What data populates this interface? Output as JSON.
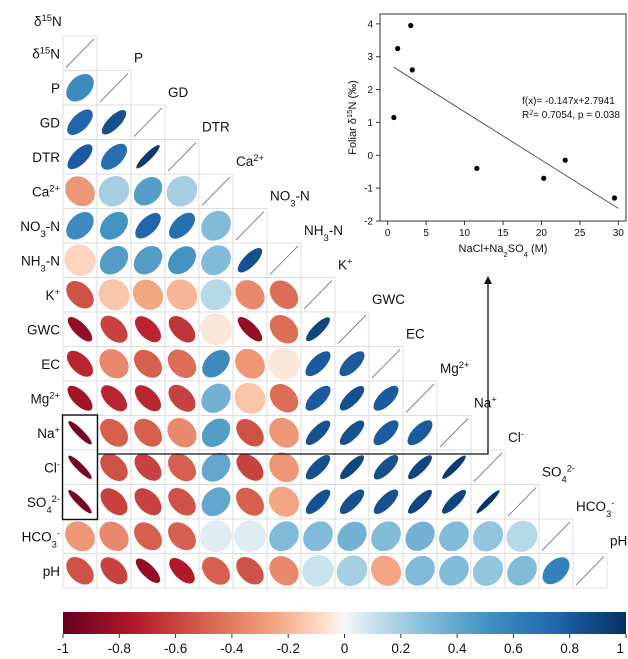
{
  "chart_data": [
    {
      "type": "heatmap",
      "variables": [
        "δ15N",
        "P",
        "GD",
        "DTR",
        "Ca2+",
        "NO3-N",
        "NH3-N",
        "K+",
        "GWC",
        "EC",
        "Mg2+",
        "Na+",
        "Cl-",
        "SO42-",
        "HCO3-",
        "pH"
      ],
      "label_parts": [
        [
          {
            "t": "δ"
          },
          {
            "t": "15",
            "s": "sup"
          },
          {
            "t": "N"
          }
        ],
        [
          {
            "t": "P"
          }
        ],
        [
          {
            "t": "GD"
          }
        ],
        [
          {
            "t": "DTR"
          }
        ],
        [
          {
            "t": "Ca"
          },
          {
            "t": "2+",
            "s": "sup"
          }
        ],
        [
          {
            "t": "NO"
          },
          {
            "t": "3",
            "s": "sub"
          },
          {
            "t": "-N"
          }
        ],
        [
          {
            "t": "NH"
          },
          {
            "t": "3",
            "s": "sub"
          },
          {
            "t": "-N"
          }
        ],
        [
          {
            "t": "K"
          },
          {
            "t": "+",
            "s": "sup"
          }
        ],
        [
          {
            "t": "GWC"
          }
        ],
        [
          {
            "t": "EC"
          }
        ],
        [
          {
            "t": "Mg"
          },
          {
            "t": "2+",
            "s": "sup"
          }
        ],
        [
          {
            "t": "Na"
          },
          {
            "t": "+",
            "s": "sup"
          }
        ],
        [
          {
            "t": "Cl"
          },
          {
            "t": "-",
            "s": "sup"
          }
        ],
        [
          {
            "t": "SO"
          },
          {
            "t": "4",
            "s": "sub"
          },
          {
            "t": "2-",
            "s": "sup"
          }
        ],
        [
          {
            "t": "HCO"
          },
          {
            "t": "3",
            "s": "sub"
          },
          {
            "t": "-",
            "s": "sup"
          }
        ],
        [
          {
            "t": "pH"
          }
        ]
      ],
      "correlations": [
        [
          0.55
        ],
        [
          0.75,
          0.85
        ],
        [
          0.8,
          0.7,
          0.95
        ],
        [
          -0.3,
          0.2,
          0.45,
          0.2
        ],
        [
          0.55,
          0.5,
          0.75,
          0.7,
          0.3
        ],
        [
          -0.1,
          0.45,
          0.45,
          0.5,
          0.3,
          0.85
        ],
        [
          -0.55,
          -0.15,
          -0.25,
          -0.2,
          0.15,
          -0.35,
          -0.45
        ],
        [
          -0.85,
          -0.6,
          -0.7,
          -0.65,
          -0.05,
          -0.85,
          -0.45,
          0.9
        ],
        [
          -0.7,
          -0.35,
          -0.5,
          -0.45,
          0.55,
          -0.3,
          -0.05,
          0.8,
          0.8
        ],
        [
          -0.8,
          -0.7,
          -0.7,
          -0.6,
          0.35,
          -0.15,
          -0.45,
          0.8,
          0.85,
          0.8
        ],
        [
          -0.95,
          -0.5,
          -0.5,
          -0.35,
          0.45,
          -0.55,
          -0.3,
          0.85,
          0.85,
          0.8,
          0.8
        ],
        [
          -0.95,
          -0.55,
          -0.6,
          -0.5,
          0.4,
          -0.6,
          -0.3,
          0.85,
          0.9,
          0.85,
          0.9,
          0.95
        ],
        [
          -0.95,
          -0.6,
          -0.6,
          -0.55,
          0.4,
          -0.5,
          -0.25,
          0.85,
          0.85,
          0.85,
          0.9,
          0.9,
          0.97
        ],
        [
          -0.3,
          -0.35,
          -0.5,
          -0.5,
          0.05,
          0.05,
          0.3,
          0.3,
          0.35,
          0.3,
          0.35,
          0.3,
          0.25,
          0.15
        ],
        [
          -0.55,
          -0.6,
          -0.85,
          -0.75,
          -0.5,
          -0.55,
          -0.35,
          0.1,
          0.2,
          -0.25,
          0.3,
          0.3,
          0.25,
          0.3,
          0.6
        ]
      ],
      "colorbar": {
        "ticks": [
          "-1",
          "-0.8",
          "-0.6",
          "-0.4",
          "-0.2",
          "0",
          "0.2",
          "0.4",
          "0.6",
          "0.8",
          "1"
        ],
        "range": [
          -1,
          1
        ]
      },
      "colors": {
        "negative": "#67001f",
        "neutral": "#f7f7f7",
        "positive": "#053061"
      }
    },
    {
      "type": "scatter",
      "x": [
        0.8,
        1.3,
        3.0,
        3.2,
        11.6,
        20.3,
        23.1,
        29.5
      ],
      "y": [
        1.15,
        3.25,
        3.95,
        2.6,
        -0.4,
        -0.7,
        -0.15,
        -1.3
      ],
      "xlabel_parts": [
        {
          "t": "NaCl+Na"
        },
        {
          "t": "2",
          "s": "sub"
        },
        {
          "t": "SO"
        },
        {
          "t": "4",
          "s": "sub"
        },
        {
          "t": " (M)"
        }
      ],
      "ylabel_parts": [
        {
          "t": "Foliar δ"
        },
        {
          "t": "15",
          "s": "sup"
        },
        {
          "t": "N (‰)"
        }
      ],
      "xlim": [
        -1,
        31
      ],
      "ylim": [
        -2,
        4.3
      ],
      "xticks": [
        "0",
        "5",
        "10",
        "15",
        "20",
        "25",
        "30"
      ],
      "yticks": [
        "-2",
        "-1",
        "0",
        "1",
        "2",
        "3",
        "4"
      ],
      "fit": {
        "slope": -0.147,
        "intercept": 2.7941
      },
      "annotation_parts": [
        [
          {
            "t": "f(x)= -0.147x+2.7941"
          }
        ],
        [
          {
            "t": "R"
          },
          {
            "t": "2",
            "s": "sup"
          },
          {
            "t": "= 0.7054, p = 0.038"
          }
        ]
      ]
    }
  ]
}
